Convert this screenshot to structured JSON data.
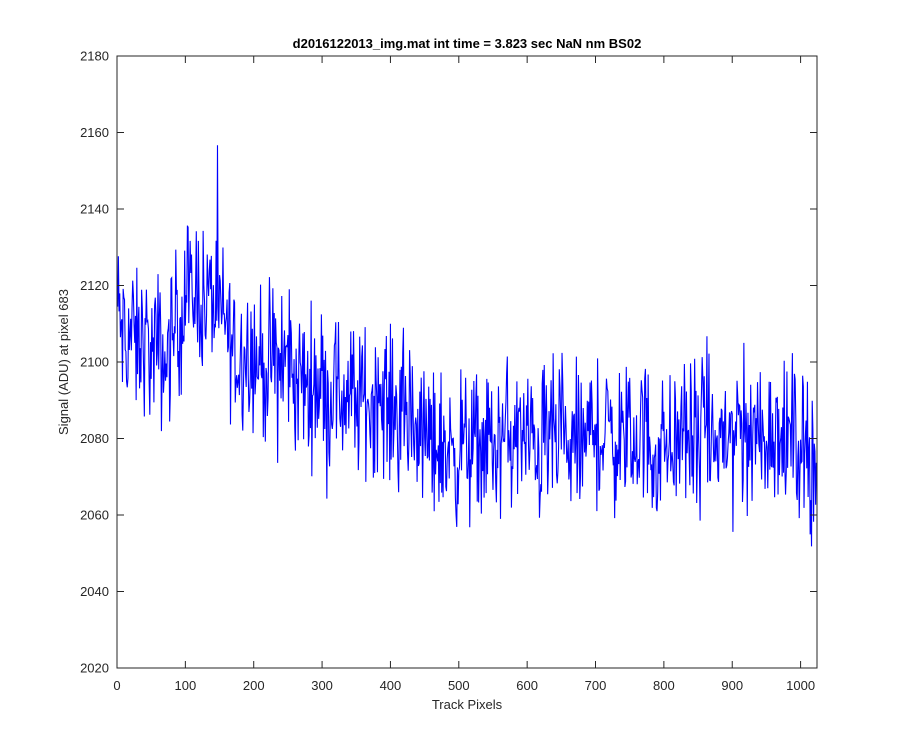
{
  "chart_data": {
    "type": "line",
    "title": "d2016122013_img.mat int time = 3.823 sec  NaN nm BS02",
    "xlabel": "Track Pixels",
    "ylabel": "Signal (ADU) at pixel 683",
    "xlim": [
      0,
      1024
    ],
    "ylim": [
      2020,
      2180
    ],
    "xticks": [
      0,
      100,
      200,
      300,
      400,
      500,
      600,
      700,
      800,
      900,
      1000
    ],
    "yticks": [
      2020,
      2040,
      2060,
      2080,
      2100,
      2120,
      2140,
      2160,
      2180
    ],
    "grid": false,
    "line_color": "#0000ff",
    "axis_color": "#262626",
    "series": [
      {
        "x": [
          0,
          10,
          20,
          30,
          40,
          50,
          60,
          70,
          80,
          90,
          100,
          110,
          120,
          130,
          140,
          150,
          160,
          170,
          180,
          190,
          200,
          210,
          220,
          230,
          240,
          250,
          260,
          270,
          280,
          290,
          300,
          310,
          320,
          330,
          340,
          350,
          360,
          370,
          380,
          390,
          400,
          410,
          420,
          430,
          440,
          450,
          460,
          470,
          480,
          490,
          500,
          510,
          520,
          530,
          540,
          550,
          560,
          570,
          580,
          590,
          600,
          610,
          620,
          630,
          640,
          650,
          660,
          670,
          680,
          690,
          700,
          710,
          720,
          730,
          740,
          750,
          760,
          770,
          780,
          790,
          800,
          810,
          820,
          830,
          840,
          850,
          860,
          870,
          880,
          890,
          900,
          910,
          920,
          930,
          940,
          950,
          960,
          970,
          980,
          990,
          1000,
          1010,
          1020
        ],
        "y": [
          2115,
          2105,
          2108,
          2103,
          2107,
          2101,
          2104,
          2099,
          2106,
          2112,
          2115,
          2118,
          2120,
          2114,
          2118,
          2112,
          2110,
          2104,
          2101,
          2105,
          2102,
          2100,
          2098,
          2100,
          2097,
          2101,
          2094,
          2096,
          2093,
          2096,
          2095,
          2092,
          2094,
          2090,
          2093,
          2088,
          2091,
          2089,
          2092,
          2090,
          2088,
          2086,
          2085,
          2084,
          2082,
          2080,
          2078,
          2079,
          2076,
          2078,
          2077,
          2079,
          2076,
          2078,
          2080,
          2077,
          2078,
          2082,
          2079,
          2081,
          2078,
          2080,
          2077,
          2079,
          2081,
          2078,
          2076,
          2079,
          2077,
          2081,
          2083,
          2080,
          2082,
          2079,
          2081,
          2078,
          2080,
          2083,
          2078,
          2076,
          2077,
          2080,
          2078,
          2082,
          2079,
          2081,
          2083,
          2080,
          2078,
          2082,
          2080,
          2084,
          2082,
          2080,
          2083,
          2081,
          2084,
          2080,
          2079,
          2081,
          2080,
          2078,
          2076
        ],
        "noise_amplitude": 14,
        "sample_count": 1024
      }
    ]
  }
}
